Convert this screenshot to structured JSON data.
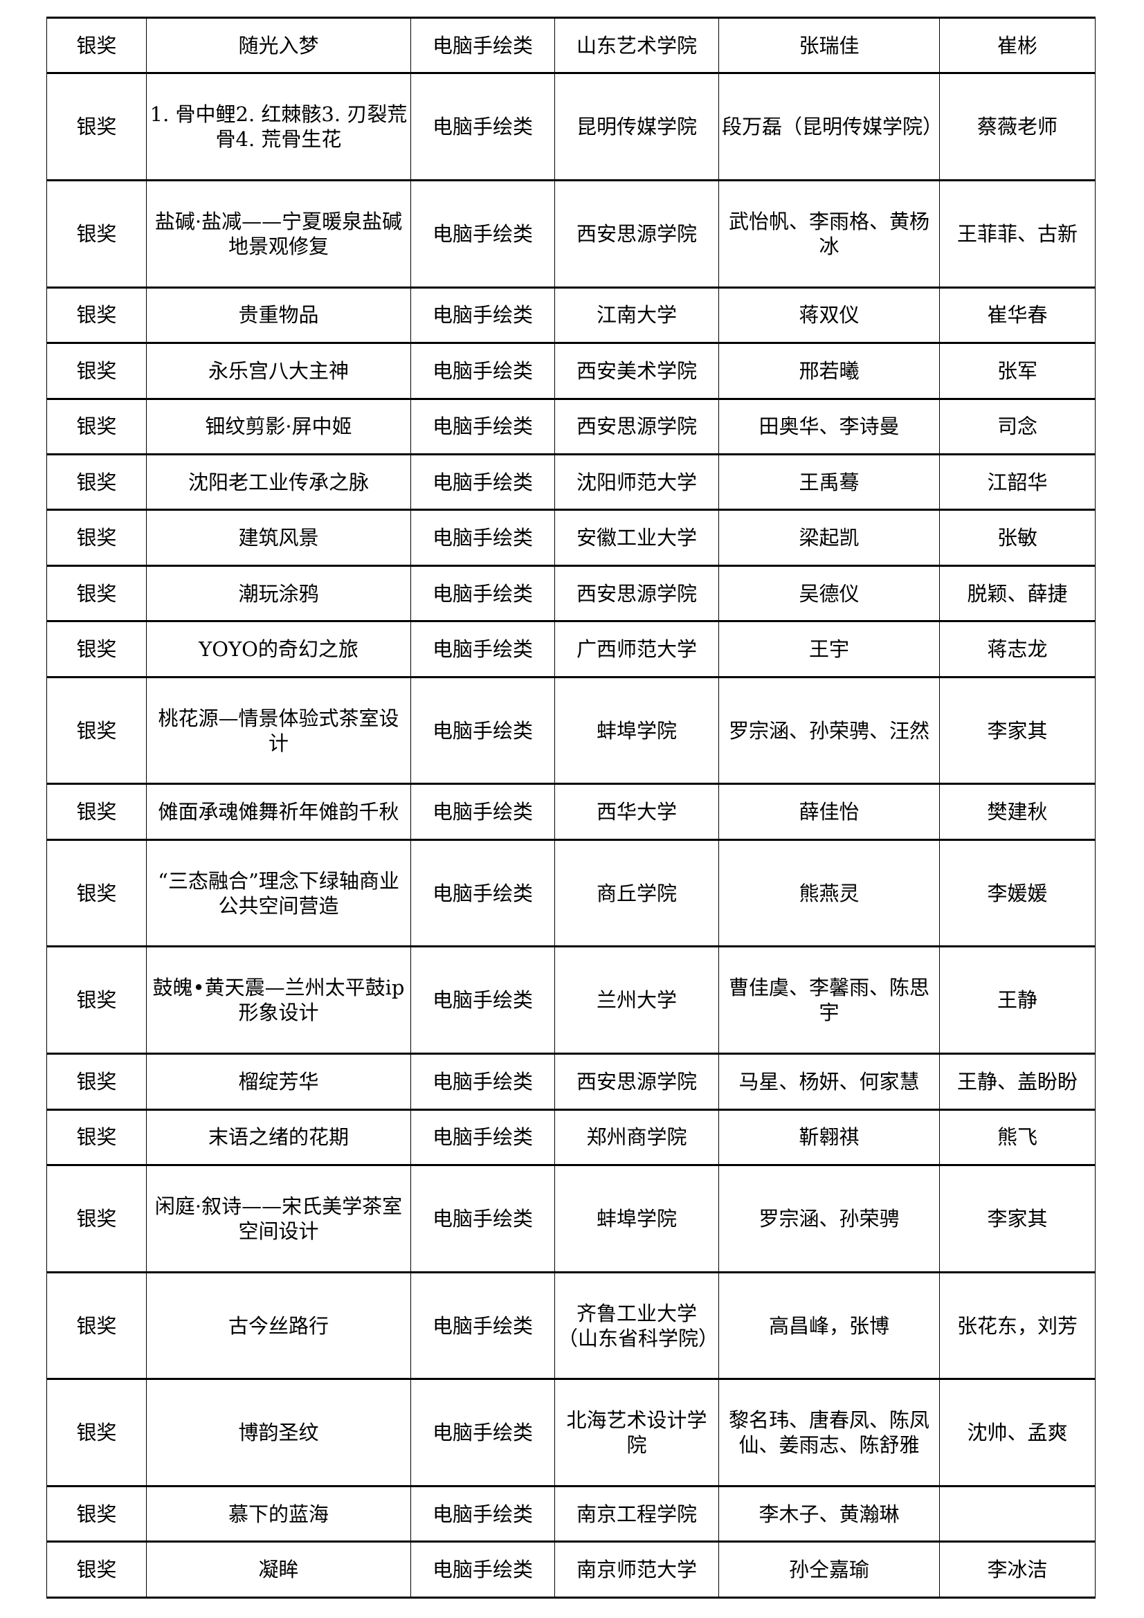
{
  "rows": [
    [
      "银奖",
      "随光入梦",
      "电脑手绘类",
      "山东艺术学院",
      "张瑞佳",
      "崔彬"
    ],
    [
      "银奖",
      "1. 骨中鲤2. 红棘骸3. 刃裂荒骨4. 荒骨生花",
      "电脑手绘类",
      "昆明传媒学院",
      "段万磊（昆明传媒学院）",
      "蔡薇老师"
    ],
    [
      "银奖",
      "盐碱·盐减——宁夏暖泉盐碱地景观修复",
      "电脑手绘类",
      "西安思源学院",
      "武怡帆、李雨格、黄杨冰",
      "王菲菲、古新"
    ],
    [
      "银奖",
      "贵重物品",
      "电脑手绘类",
      "江南大学",
      "蒋双仪",
      "崔华春"
    ],
    [
      "银奖",
      "永乐宫八大主神",
      "电脑手绘类",
      "西安美术学院",
      "邢若曦",
      "张军"
    ],
    [
      "银奖",
      "钿纹剪影·屏中姬",
      "电脑手绘类",
      "西安思源学院",
      "田奥华、李诗曼",
      "司念"
    ],
    [
      "银奖",
      "沈阳老工业传承之脉",
      "电脑手绘类",
      "沈阳师范大学",
      "王禹蓦",
      "江韶华"
    ],
    [
      "银奖",
      "建筑风景",
      "电脑手绘类",
      "安徽工业大学",
      "梁起凯",
      "张敏"
    ],
    [
      "银奖",
      "潮玩涂鸦",
      "电脑手绘类",
      "西安思源学院",
      "吴德仪",
      "脱颖、薛捷"
    ],
    [
      "银奖",
      "YOYO的奇幻之旅",
      "电脑手绘类",
      "广西师范大学",
      "王宇",
      "蒋志龙"
    ],
    [
      "银奖",
      "桃花源—情景体验式茶室设计",
      "电脑手绘类",
      "蚌埠学院",
      "罗宗涵、孙荣骋、汪然",
      "李家其"
    ],
    [
      "银奖",
      "傩面承魂傩舞祈年傩韵千秋",
      "电脑手绘类",
      "西华大学",
      "薛佳怡",
      "樊建秋"
    ],
    [
      "银奖",
      "“三态融合”理念下绿轴商业公共空间营造",
      "电脑手绘类",
      "商丘学院",
      "熊燕灵",
      "李媛媛"
    ],
    [
      "银奖",
      "鼓魄•黄天震—兰州太平鼓ip形象设计",
      "电脑手绘类",
      "兰州大学",
      "曹佳虞、李馨雨、陈思宇",
      "王静"
    ],
    [
      "银奖",
      "榴绽芳华",
      "电脑手绘类",
      "西安思源学院",
      "马星、杨妍、何家慧",
      "王静、盖盼盼"
    ],
    [
      "银奖",
      "末语之绪的花期",
      "电脑手绘类",
      "郑州商学院",
      "靳翱祺",
      "熊飞"
    ],
    [
      "银奖",
      "闲庭·叙诗——宋氏美学茶室空间设计",
      "电脑手绘类",
      "蚌埠学院",
      "罗宗涵、孙荣骋",
      "李家其"
    ],
    [
      "银奖",
      "古今丝路行",
      "电脑手绘类",
      "齐鲁工业大学（山东省科学院）",
      "高昌峰，张博",
      "张花东，刘芳"
    ],
    [
      "银奖",
      "博韵圣纹",
      "电脑手绘类",
      "北海艺术设计学院",
      "黎名玮、唐春凤、陈凤仙、姜雨志、陈舒雅",
      "沈帅、孟爽"
    ],
    [
      "银奖",
      "慕下的蓝海",
      "电脑手绘类",
      "南京工程学院",
      "李木子、黄瀚琳",
      ""
    ],
    [
      "银奖",
      "凝眸",
      "电脑手绘类",
      "南京师范大学",
      "孙仝嘉瑜",
      "李冰洁"
    ]
  ]
}
